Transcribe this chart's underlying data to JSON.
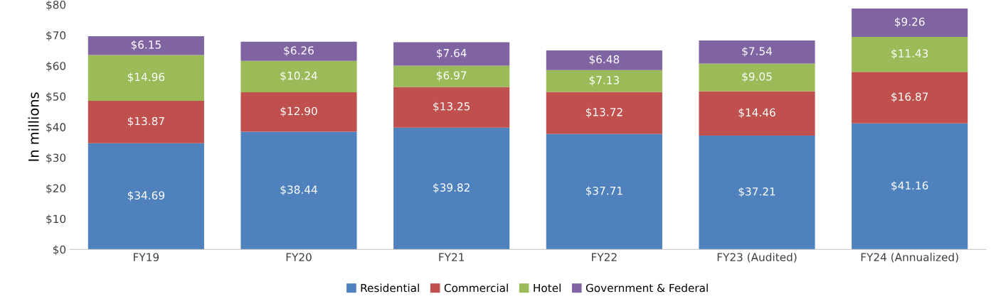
{
  "chart_data": {
    "type": "bar",
    "stacked": true,
    "ylabel": "In millions",
    "categories": [
      "FY19",
      "FY20",
      "FY21",
      "FY22",
      "FY23 (Audited)",
      "FY24 (Annualized)"
    ],
    "series": [
      {
        "name": "Residential",
        "color": "#4f81bd",
        "values": [
          34.69,
          38.44,
          39.82,
          37.71,
          37.21,
          41.16
        ],
        "value_labels": [
          "$34.69",
          "$38.44",
          "$39.82",
          "$37.71",
          "$37.21",
          "$41.16"
        ]
      },
      {
        "name": "Commercial",
        "color": "#c0504d",
        "values": [
          13.87,
          12.9,
          13.25,
          13.72,
          14.46,
          16.87
        ],
        "value_labels": [
          "$13.87",
          "$12.90",
          "$13.25",
          "$13.72",
          "$14.46",
          "$16.87"
        ]
      },
      {
        "name": "Hotel",
        "color": "#9bbb59",
        "values": [
          14.96,
          10.24,
          6.97,
          7.13,
          9.05,
          11.43
        ],
        "value_labels": [
          "$14.96",
          "$10.24",
          "$6.97",
          "$7.13",
          "$9.05",
          "$11.43"
        ]
      },
      {
        "name": "Government & Federal",
        "color": "#8064a2",
        "values": [
          6.15,
          6.26,
          7.64,
          6.48,
          7.54,
          9.26
        ],
        "value_labels": [
          "$6.15",
          "$6.26",
          "$7.64",
          "$6.48",
          "$7.54",
          "$9.26"
        ]
      }
    ],
    "ylim": [
      0,
      80
    ],
    "yticks": [
      {
        "value": 0,
        "label": "$0"
      },
      {
        "value": 10,
        "label": "$10"
      },
      {
        "value": 20,
        "label": "$20"
      },
      {
        "value": 30,
        "label": "$30"
      },
      {
        "value": 40,
        "label": "$40"
      },
      {
        "value": 50,
        "label": "$50"
      },
      {
        "value": 60,
        "label": "$60"
      },
      {
        "value": 70,
        "label": "$70"
      },
      {
        "value": 80,
        "label": "$80"
      }
    ],
    "grid": false,
    "legend": "bottom"
  }
}
